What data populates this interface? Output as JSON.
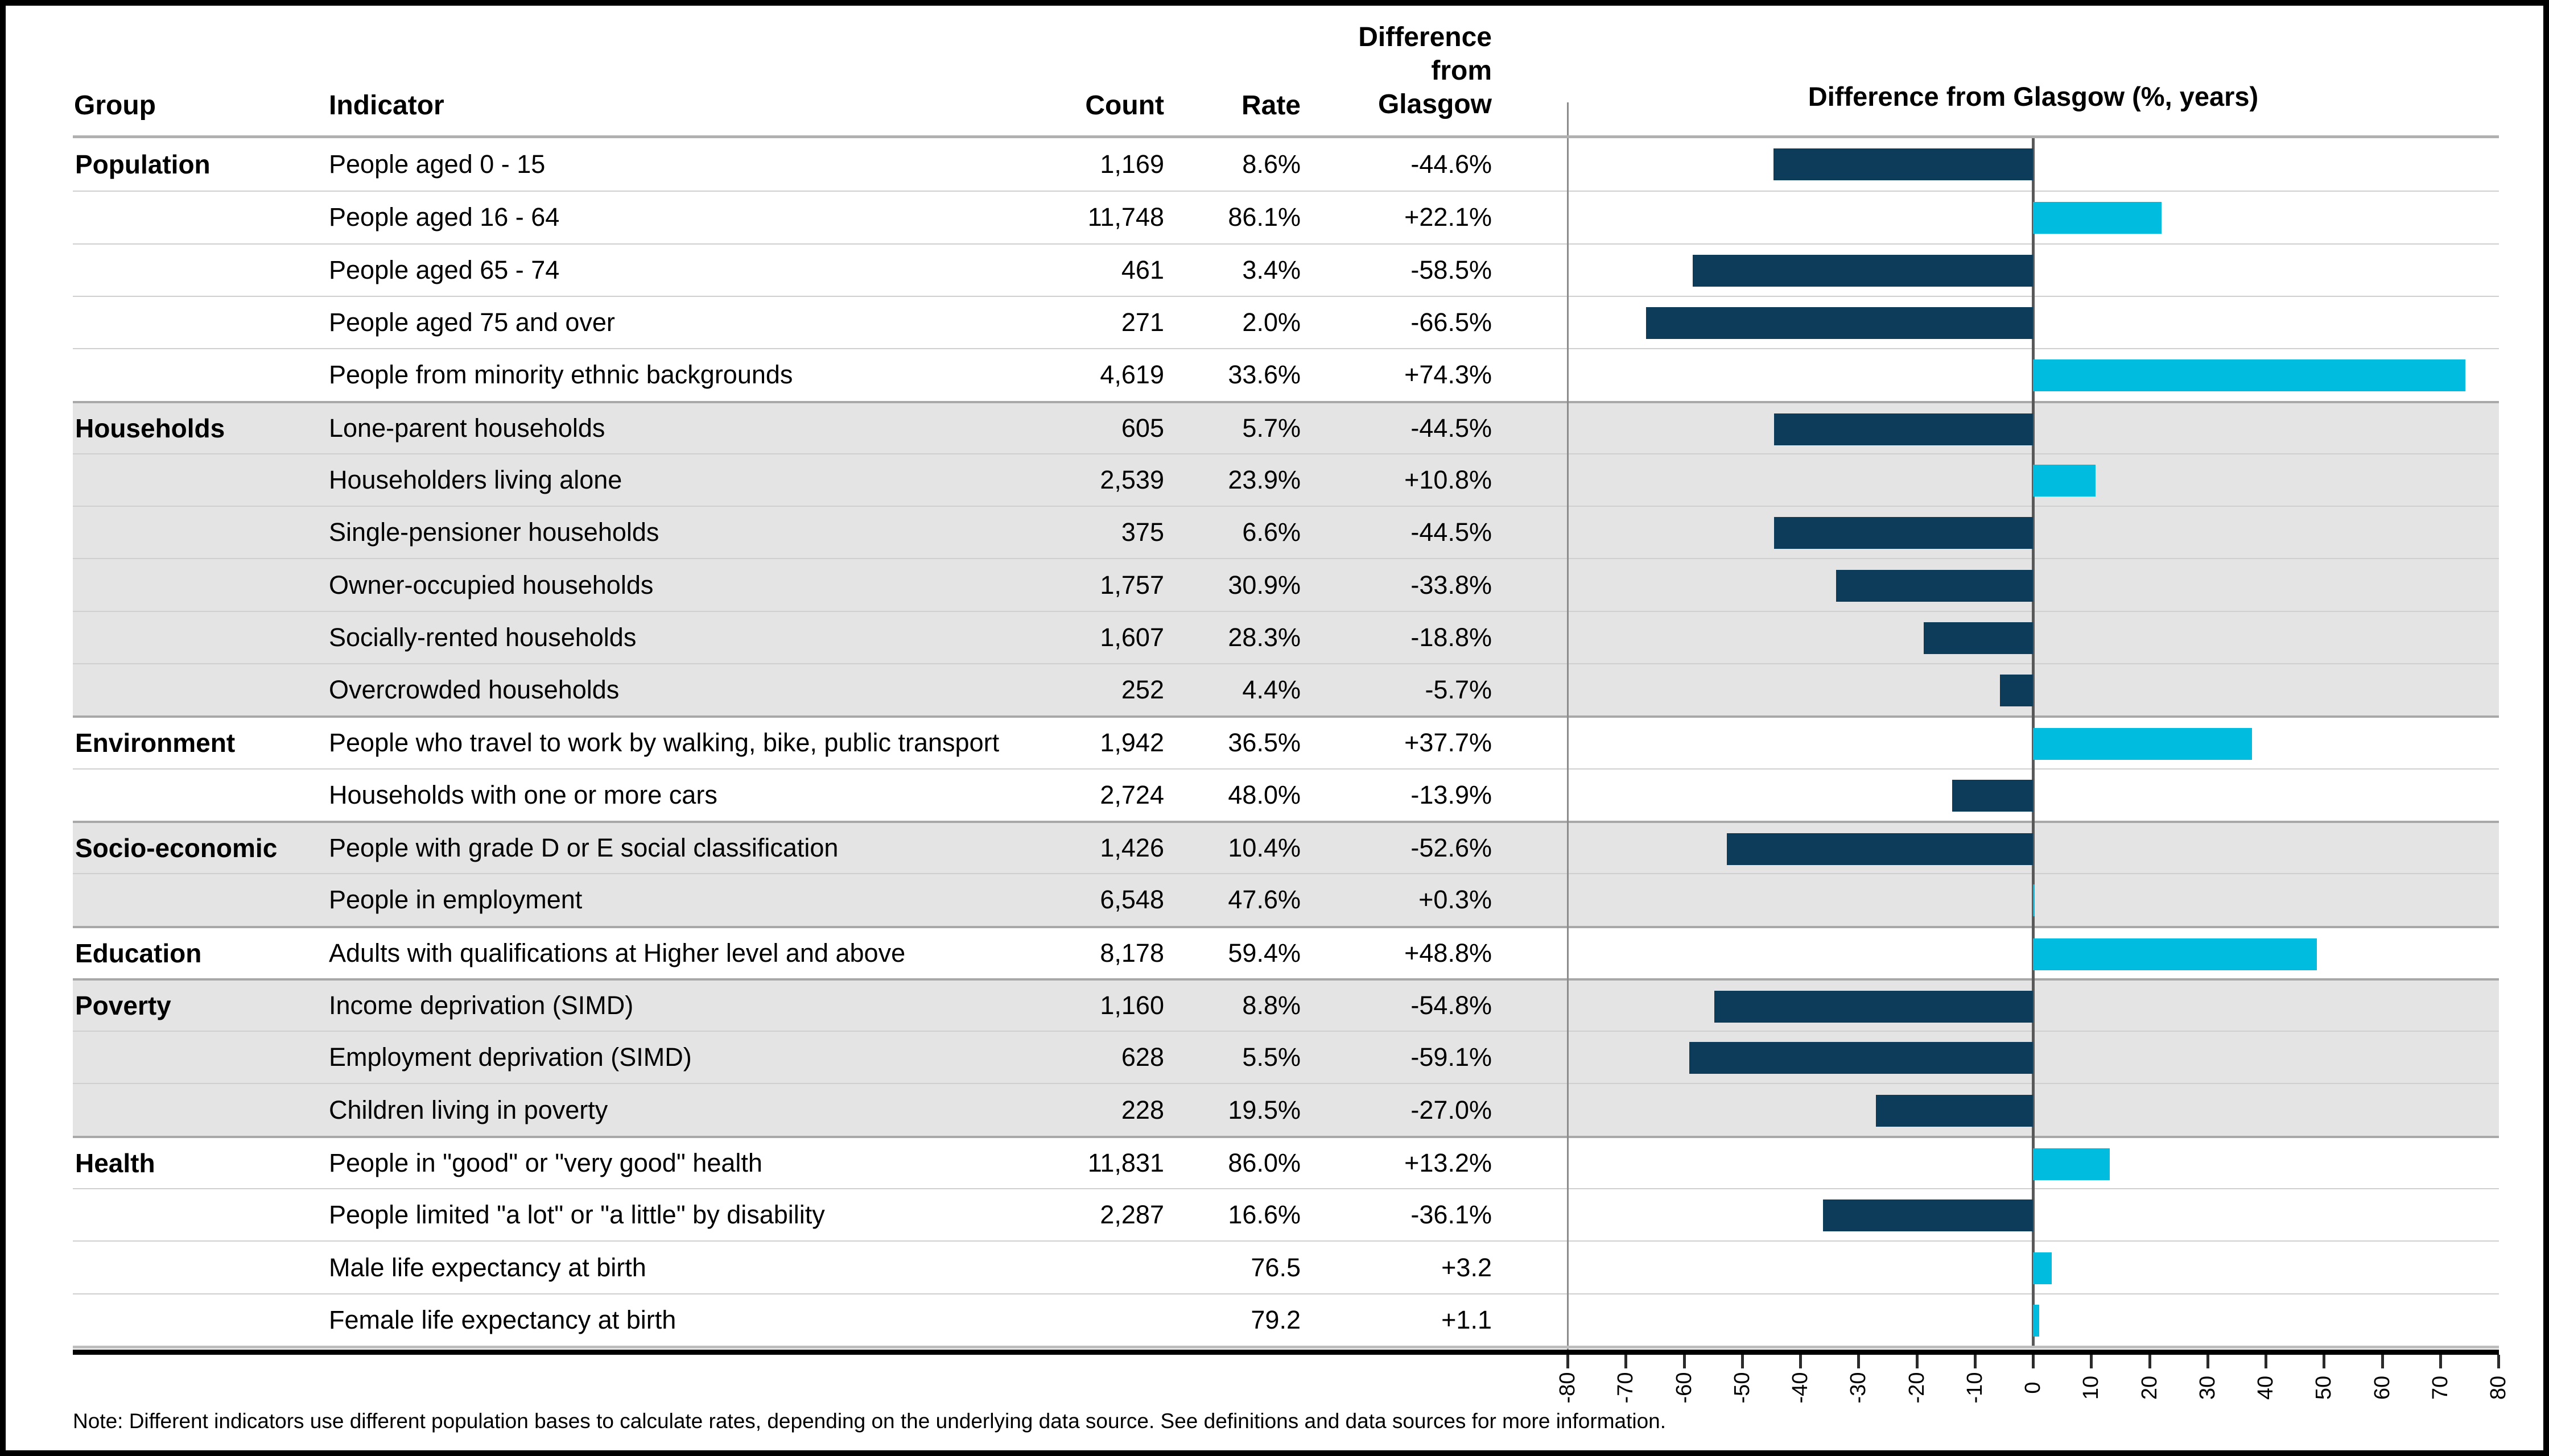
{
  "header": {
    "group": "Group",
    "indicator": "Indicator",
    "count": "Count",
    "rate": "Rate",
    "difference_lines": [
      "Difference",
      "from",
      "Glasgow"
    ],
    "chart_title": "Difference from Glasgow (%, years)"
  },
  "axis": {
    "min": -80,
    "max": 80,
    "step": 10,
    "tick_labels": [
      "-80",
      "-70",
      "-60",
      "-50",
      "-40",
      "-30",
      "-20",
      "-10",
      "0",
      "10",
      "20",
      "30",
      "40",
      "50",
      "60",
      "70",
      "80"
    ]
  },
  "colors": {
    "negative_bar": "#0d3c5b",
    "positive_bar": "#00bcdf",
    "shaded_row": "#e4e4e4",
    "zero_line": "#595959"
  },
  "groups": [
    {
      "name": "Population",
      "shaded": false,
      "rows": [
        {
          "indicator": "People aged 0 - 15",
          "count": "1,169",
          "rate": "8.6%",
          "difference": "-44.6%",
          "value": -44.6
        },
        {
          "indicator": "People aged 16 - 64",
          "count": "11,748",
          "rate": "86.1%",
          "difference": "+22.1%",
          "value": 22.1
        },
        {
          "indicator": "People aged 65 - 74",
          "count": "461",
          "rate": "3.4%",
          "difference": "-58.5%",
          "value": -58.5
        },
        {
          "indicator": "People aged 75 and over",
          "count": "271",
          "rate": "2.0%",
          "difference": "-66.5%",
          "value": -66.5
        },
        {
          "indicator": "People from minority ethnic backgrounds",
          "count": "4,619",
          "rate": "33.6%",
          "difference": "+74.3%",
          "value": 74.3
        }
      ]
    },
    {
      "name": "Households",
      "shaded": true,
      "rows": [
        {
          "indicator": "Lone-parent households",
          "count": "605",
          "rate": "5.7%",
          "difference": "-44.5%",
          "value": -44.5
        },
        {
          "indicator": "Householders living alone",
          "count": "2,539",
          "rate": "23.9%",
          "difference": "+10.8%",
          "value": 10.8
        },
        {
          "indicator": "Single-pensioner households",
          "count": "375",
          "rate": "6.6%",
          "difference": "-44.5%",
          "value": -44.5
        },
        {
          "indicator": "Owner-occupied households",
          "count": "1,757",
          "rate": "30.9%",
          "difference": "-33.8%",
          "value": -33.8
        },
        {
          "indicator": "Socially-rented households",
          "count": "1,607",
          "rate": "28.3%",
          "difference": "-18.8%",
          "value": -18.8
        },
        {
          "indicator": "Overcrowded households",
          "count": "252",
          "rate": "4.4%",
          "difference": "-5.7%",
          "value": -5.7
        }
      ]
    },
    {
      "name": "Environment",
      "shaded": false,
      "rows": [
        {
          "indicator": "People who travel to work by walking, bike, public transport",
          "count": "1,942",
          "rate": "36.5%",
          "difference": "+37.7%",
          "value": 37.7
        },
        {
          "indicator": "Households with one or more cars",
          "count": "2,724",
          "rate": "48.0%",
          "difference": "-13.9%",
          "value": -13.9
        }
      ]
    },
    {
      "name": "Socio-economic",
      "shaded": true,
      "rows": [
        {
          "indicator": "People with grade D or E social classification",
          "count": "1,426",
          "rate": "10.4%",
          "difference": "-52.6%",
          "value": -52.6
        },
        {
          "indicator": "People in employment",
          "count": "6,548",
          "rate": "47.6%",
          "difference": "+0.3%",
          "value": 0.3
        }
      ]
    },
    {
      "name": "Education",
      "shaded": false,
      "rows": [
        {
          "indicator": "Adults with qualifications at Higher level and above",
          "count": "8,178",
          "rate": "59.4%",
          "difference": "+48.8%",
          "value": 48.8
        }
      ]
    },
    {
      "name": "Poverty",
      "shaded": true,
      "rows": [
        {
          "indicator": "Income deprivation (SIMD)",
          "count": "1,160",
          "rate": "8.8%",
          "difference": "-54.8%",
          "value": -54.8
        },
        {
          "indicator": "Employment deprivation (SIMD)",
          "count": "628",
          "rate": "5.5%",
          "difference": "-59.1%",
          "value": -59.1
        },
        {
          "indicator": "Children living in poverty",
          "count": "228",
          "rate": "19.5%",
          "difference": "-27.0%",
          "value": -27.0
        }
      ]
    },
    {
      "name": "Health",
      "shaded": false,
      "rows": [
        {
          "indicator": "People in \"good\" or \"very good\" health",
          "count": "11,831",
          "rate": "86.0%",
          "difference": "+13.2%",
          "value": 13.2
        },
        {
          "indicator": "People limited \"a lot\" or \"a little\" by disability",
          "count": "2,287",
          "rate": "16.6%",
          "difference": "-36.1%",
          "value": -36.1
        },
        {
          "indicator": "Male life expectancy at birth",
          "count": "",
          "rate": "76.5",
          "difference": "+3.2",
          "value": 3.2
        },
        {
          "indicator": "Female life expectancy at birth",
          "count": "",
          "rate": "79.2",
          "difference": "+1.1",
          "value": 1.1
        }
      ]
    }
  ],
  "note": "Note: Different indicators use different population bases to calculate rates, depending on the underlying data source. See definitions and data sources for more information.",
  "chart_data": {
    "type": "bar",
    "orientation": "horizontal",
    "title": "Difference from Glasgow (%, years)",
    "categories": [
      "People aged 0 - 15",
      "People aged 16 - 64",
      "People aged 65 - 74",
      "People aged 75 and over",
      "People from minority ethnic backgrounds",
      "Lone-parent households",
      "Householders living alone",
      "Single-pensioner households",
      "Owner-occupied households",
      "Socially-rented households",
      "Overcrowded households",
      "People who travel to work by walking, bike, public transport",
      "Households with one or more cars",
      "People with grade D or E social classification",
      "People in employment",
      "Adults with qualifications at Higher level and above",
      "Income deprivation (SIMD)",
      "Employment deprivation (SIMD)",
      "Children living in poverty",
      "People in \"good\" or \"very good\" health",
      "People limited \"a lot\" or \"a little\" by disability",
      "Male life expectancy at birth",
      "Female life expectancy at birth"
    ],
    "values": [
      -44.6,
      22.1,
      -58.5,
      -66.5,
      74.3,
      -44.5,
      10.8,
      -44.5,
      -33.8,
      -18.8,
      -5.7,
      37.7,
      -13.9,
      -52.6,
      0.3,
      48.8,
      -54.8,
      -59.1,
      -27.0,
      13.2,
      -36.1,
      3.2,
      1.1
    ],
    "xlim": [
      -80,
      80
    ],
    "tick_step": 10,
    "grid": false,
    "legend": "none",
    "negative_color": "#0d3c5b",
    "positive_color": "#00bcdf"
  }
}
